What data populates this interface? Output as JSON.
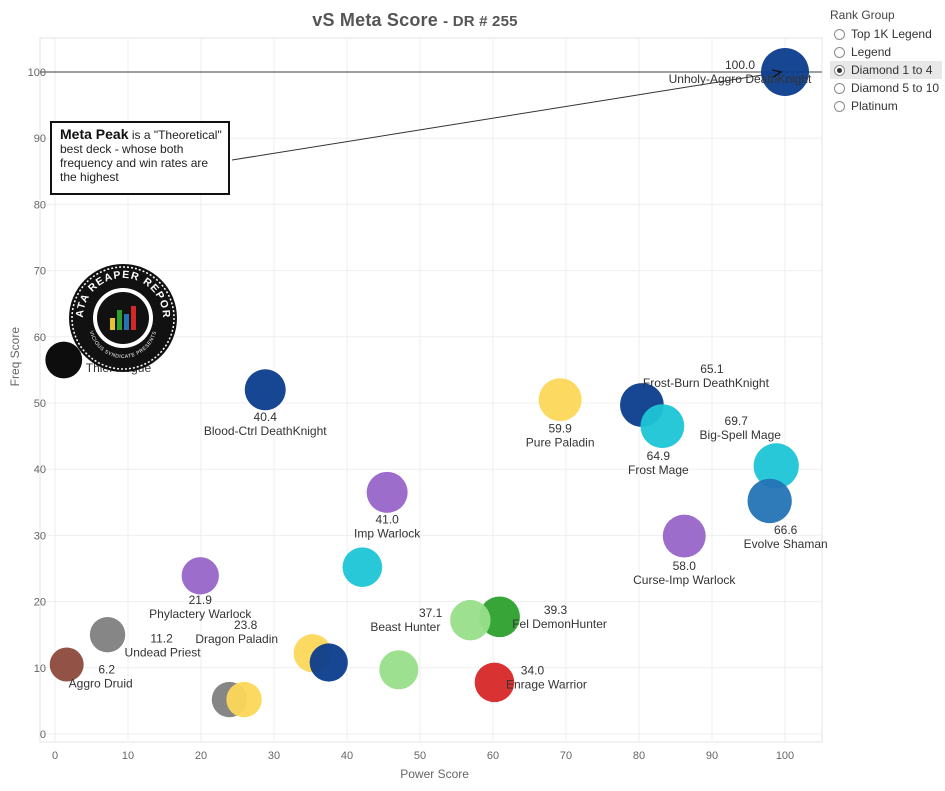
{
  "header": {
    "title": "vS Meta Score",
    "subtitle": "- DR # 255"
  },
  "legend": {
    "title": "Rank Group",
    "items": [
      {
        "label": "Top 1K Legend",
        "selected": false
      },
      {
        "label": "Legend",
        "selected": false
      },
      {
        "label": "Diamond 1 to 4",
        "selected": true
      },
      {
        "label": "Diamond 5 to 10",
        "selected": false
      },
      {
        "label": "Platinum",
        "selected": false
      }
    ]
  },
  "annotation": {
    "bold": "Meta Peak",
    "text": " is a \"Theoretical\" best deck - whose both frequency and win rates are the highest"
  },
  "logo": {
    "text": "DATA REAPER REPORT",
    "subtext": "VICIOUS SYNDICATE PRESENTS"
  },
  "chart_data": {
    "type": "scatter",
    "title": "vS Meta Score - DR # 255",
    "xlabel": "Power Score",
    "ylabel": "Freq Score",
    "xlim": [
      0,
      105
    ],
    "ylim": [
      -1,
      105
    ],
    "xticks": [
      0,
      10,
      20,
      30,
      40,
      50,
      60,
      70,
      80,
      90,
      100
    ],
    "yticks": [
      0,
      10,
      20,
      30,
      40,
      50,
      60,
      70,
      80,
      90,
      100
    ],
    "grid": true,
    "reference_line": {
      "y": 100
    },
    "points": [
      {
        "name": "Unholy-Aggro DeathKnight",
        "score": "100.0",
        "x": 100.0,
        "y": 100.0,
        "size": 1.0,
        "color": "#0b3c8c"
      },
      {
        "name": "Thief Rogue",
        "score": "",
        "x": 1.2,
        "y": 56.5,
        "size": 0.6,
        "color": "#000000"
      },
      {
        "name": "Blood-Ctrl DeathKnight",
        "score": "40.4",
        "x": 28.8,
        "y": 52.0,
        "size": 0.75,
        "color": "#0b3c8c"
      },
      {
        "name": "Pure Paladin",
        "score": "59.9",
        "x": 69.2,
        "y": 50.5,
        "size": 0.82,
        "color": "#fcd758"
      },
      {
        "name": "Frost-Burn DeathKnight",
        "score": "65.1",
        "x": 80.4,
        "y": 49.7,
        "size": 0.85,
        "color": "#0b3c8c"
      },
      {
        "name": "Frost Mage",
        "score": "64.9",
        "x": 83.2,
        "y": 46.5,
        "size": 0.85,
        "color": "#1ec5d6"
      },
      {
        "name": "Big-Spell Mage",
        "score": "69.7",
        "x": 98.8,
        "y": 40.5,
        "size": 0.9,
        "color": "#1ec5d6"
      },
      {
        "name": "Evolve Shaman",
        "score": "66.6",
        "x": 97.9,
        "y": 35.2,
        "size": 0.87,
        "color": "#2474b5"
      },
      {
        "name": "Imp Warlock",
        "score": "41.0",
        "x": 45.5,
        "y": 36.5,
        "size": 0.75,
        "color": "#9865c9"
      },
      {
        "name": "Curse-Imp Warlock",
        "score": "58.0",
        "x": 86.2,
        "y": 29.9,
        "size": 0.82,
        "color": "#9865c9"
      },
      {
        "name": "",
        "score": "",
        "x": 42.1,
        "y": 25.2,
        "size": 0.7,
        "color": "#1ec5d6"
      },
      {
        "name": "Phylactery Warlock",
        "score": "21.9",
        "x": 19.9,
        "y": 23.9,
        "size": 0.62,
        "color": "#9865c9"
      },
      {
        "name": "Fel DemonHunter",
        "score": "39.3",
        "x": 60.9,
        "y": 17.7,
        "size": 0.74,
        "color": "#2ca02c"
      },
      {
        "name": "Beast Hunter",
        "score": "37.1",
        "x": 56.9,
        "y": 17.2,
        "size": 0.73,
        "color": "#98df8a"
      },
      {
        "name": "Undead Priest",
        "score": "11.2",
        "x": 7.2,
        "y": 15.0,
        "size": 0.55,
        "color": "#7f7f7f"
      },
      {
        "name": "Dragon Paladin",
        "score": "23.8",
        "x": 35.3,
        "y": 12.2,
        "size": 0.65,
        "color": "#fcd758"
      },
      {
        "name": "",
        "score": "",
        "x": 37.5,
        "y": 10.8,
        "size": 0.65,
        "color": "#0b3c8c"
      },
      {
        "name": "Aggro Druid",
        "score": "6.2",
        "x": 1.6,
        "y": 10.5,
        "size": 0.5,
        "color": "#8c4a3c"
      },
      {
        "name": "",
        "score": "",
        "x": 47.1,
        "y": 9.7,
        "size": 0.68,
        "color": "#98df8a"
      },
      {
        "name": "Enrage Warrior",
        "score": "34.0",
        "x": 60.2,
        "y": 7.8,
        "size": 0.7,
        "color": "#d62728"
      },
      {
        "name": "",
        "score": "",
        "x": 23.9,
        "y": 5.2,
        "size": 0.55,
        "color": "#7f7f7f"
      },
      {
        "name": "",
        "score": "",
        "x": 25.9,
        "y": 5.2,
        "size": 0.55,
        "color": "#fcd758"
      }
    ]
  }
}
